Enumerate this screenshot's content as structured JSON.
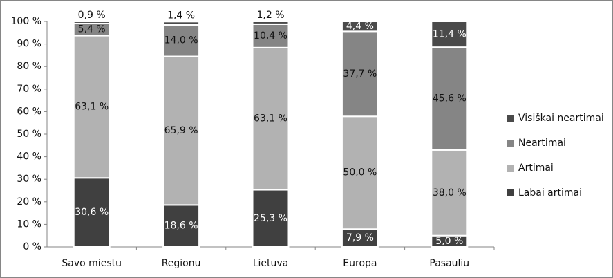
{
  "chart_data": {
    "type": "stacked_bar",
    "categories": [
      "Savo miestu",
      "Regionu",
      "Lietuva",
      "Europa",
      "Pasauliu"
    ],
    "series": [
      {
        "name": "Labai artimai",
        "color": "#404040",
        "values": [
          30.6,
          18.6,
          25.3,
          7.9,
          5.0
        ],
        "value_labels": [
          "30,6 %",
          "18,6 %",
          "25,3 %",
          "7,9 %",
          "5,0 %"
        ]
      },
      {
        "name": "Artimai",
        "color": "#b2b2b2",
        "values": [
          63.1,
          65.9,
          63.1,
          50.0,
          38.0
        ],
        "value_labels": [
          "63,1 %",
          "65,9 %",
          "63,1 %",
          "50,0 %",
          "38,0 %"
        ]
      },
      {
        "name": "Neartimai",
        "color": "#858585",
        "values": [
          5.4,
          14.0,
          10.4,
          37.7,
          45.6
        ],
        "value_labels": [
          "5,4 %",
          "14,0 %",
          "10,4 %",
          "37,7 %",
          "45,6 %"
        ]
      },
      {
        "name": "Visiškai neartimai",
        "color": "#4a4a4a",
        "values": [
          0.9,
          1.4,
          1.2,
          4.4,
          11.4
        ],
        "value_labels": [
          "0,9 %",
          "1,4 %",
          "1,2 %",
          "4,4 %",
          "11,4 %"
        ]
      }
    ],
    "ylim": [
      0,
      100
    ],
    "yticks": [
      {
        "value": 0,
        "label": "0 %"
      },
      {
        "value": 10,
        "label": "10 %"
      },
      {
        "value": 20,
        "label": "20 %"
      },
      {
        "value": 30,
        "label": "30 %"
      },
      {
        "value": 40,
        "label": "40 %"
      },
      {
        "value": 50,
        "label": "50 %"
      },
      {
        "value": 60,
        "label": "60 %"
      },
      {
        "value": 70,
        "label": "70 %"
      },
      {
        "value": 80,
        "label": "80 %"
      },
      {
        "value": 90,
        "label": "90 %"
      },
      {
        "value": 100,
        "label": "100 %"
      }
    ],
    "grid": false,
    "legend": "right"
  }
}
